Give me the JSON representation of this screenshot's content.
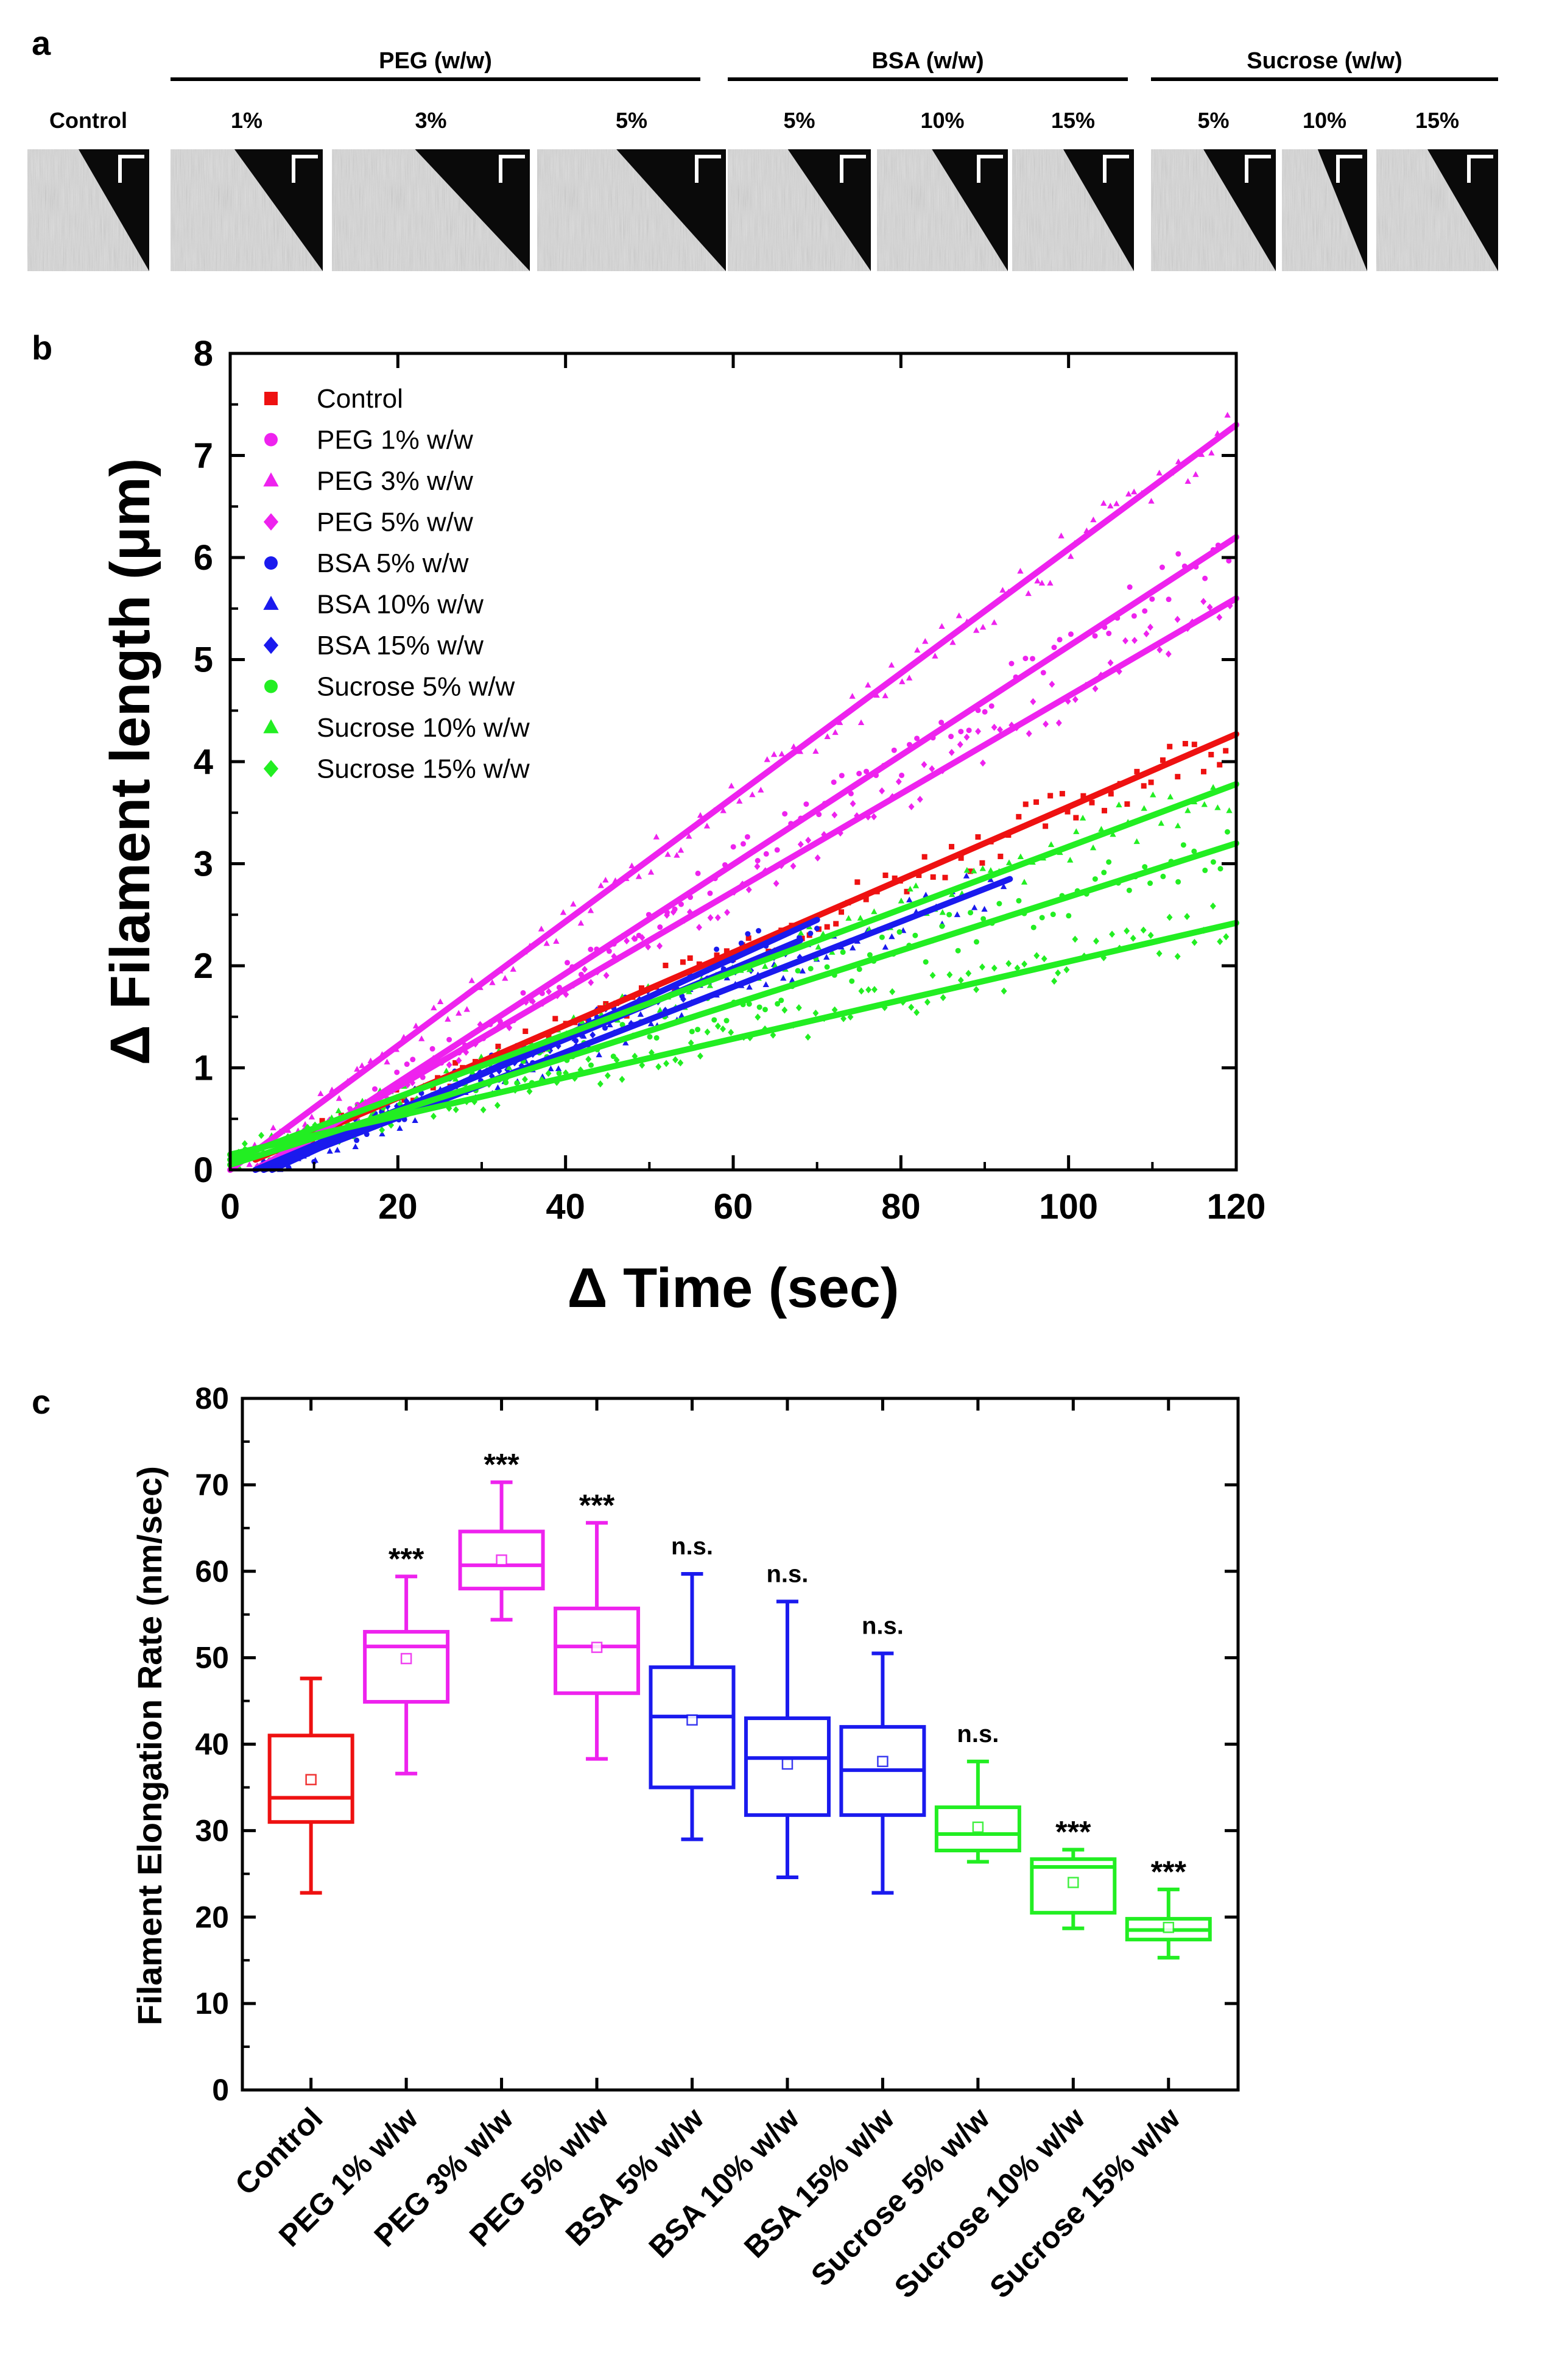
{
  "panel_labels": {
    "a": "a",
    "b": "b",
    "c": "c"
  },
  "colors": {
    "control": "#ee1111",
    "peg": "#ee22ee",
    "bsa": "#1a1aee",
    "sucrose": "#22ee22",
    "axis": "#000000"
  },
  "panel_a": {
    "groups": [
      {
        "title": "PEG (w/w)",
        "labels": [
          "1%",
          "3%",
          "5%"
        ]
      },
      {
        "title": "BSA (w/w)",
        "labels": [
          "5%",
          "10%",
          "15%"
        ]
      },
      {
        "title": "Sucrose (w/w)",
        "labels": [
          "5%",
          "10%",
          "15%"
        ]
      }
    ],
    "control_label": "Control"
  },
  "chart_data": [
    {
      "type": "scatter",
      "panel": "b",
      "xlabel": "Δ Time (sec)",
      "ylabel": "Δ Filament length (μm)",
      "xlim": [
        0,
        120
      ],
      "ylim": [
        0,
        8
      ],
      "xticks": [
        "0",
        "20",
        "40",
        "60",
        "80",
        "100",
        "120"
      ],
      "yticks": [
        "0",
        "1",
        "2",
        "3",
        "4",
        "5",
        "6",
        "7",
        "8"
      ],
      "legend_position": "top-left",
      "series": [
        {
          "name": "Control",
          "color": "#ee1111",
          "marker": "square",
          "fit": [
            [
              3,
              0.1
            ],
            [
              120,
              4.27
            ]
          ],
          "x_range": [
            10,
            119
          ]
        },
        {
          "name": "PEG 1% w/w",
          "color": "#ee22ee",
          "marker": "circle",
          "fit": [
            [
              4,
              0.0
            ],
            [
              120,
              6.2
            ]
          ],
          "x_range": [
            4,
            119
          ]
        },
        {
          "name": "PEG 3% w/w",
          "color": "#ee22ee",
          "marker": "triangle",
          "fit": [
            [
              0,
              0.0
            ],
            [
              120,
              7.3
            ]
          ],
          "x_range": [
            2,
            119
          ]
        },
        {
          "name": "PEG 5% w/w",
          "color": "#ee22ee",
          "marker": "diamond",
          "fit": [
            [
              3,
              0.0
            ],
            [
              120,
              5.6
            ]
          ],
          "x_range": [
            3,
            119
          ]
        },
        {
          "name": "BSA 5% w/w",
          "color": "#1a1aee",
          "marker": "circle",
          "fit": [
            [
              5,
              0.0
            ],
            [
              70,
              2.45
            ]
          ],
          "x_range": [
            5,
            70
          ]
        },
        {
          "name": "BSA 10% w/w",
          "color": "#1a1aee",
          "marker": "triangle",
          "fit": [
            [
              4,
              0.0
            ],
            [
              93,
              2.85
            ]
          ],
          "x_range": [
            4,
            92
          ]
        },
        {
          "name": "BSA 15% w/w",
          "color": "#1a1aee",
          "marker": "diamond",
          "fit": [
            [
              3,
              0.0
            ],
            [
              68,
              2.25
            ]
          ],
          "x_range": [
            3,
            68
          ]
        },
        {
          "name": "Sucrose 5% w/w",
          "color": "#22ee22",
          "marker": "circle",
          "fit": [
            [
              0,
              0.05
            ],
            [
              120,
              3.2
            ]
          ],
          "x_range": [
            1,
            119
          ]
        },
        {
          "name": "Sucrose 10% w/w",
          "color": "#22ee22",
          "marker": "triangle",
          "fit": [
            [
              0,
              0.1
            ],
            [
              120,
              3.78
            ]
          ],
          "x_range": [
            1,
            119
          ]
        },
        {
          "name": "Sucrose 15% w/w",
          "color": "#22ee22",
          "marker": "diamond",
          "fit": [
            [
              0,
              0.15
            ],
            [
              120,
              2.42
            ]
          ],
          "x_range": [
            1,
            119
          ]
        }
      ]
    },
    {
      "type": "box",
      "panel": "c",
      "ylabel": "Filament Elongation Rate (nm/sec)",
      "ylim": [
        0,
        80
      ],
      "yticks": [
        "0",
        "10",
        "20",
        "30",
        "40",
        "50",
        "60",
        "70",
        "80"
      ],
      "categories": [
        "Control",
        "PEG 1% w/w",
        "PEG 3% w/w",
        "PEG 5% w/w",
        "BSA 5% w/w",
        "BSA 10% w/w",
        "BSA 15% w/w",
        "Sucrose 5% w/w",
        "Sucrose 10% w/w",
        "Sucrose 15% w/w"
      ],
      "boxes": [
        {
          "name": "Control",
          "color": "#ee1111",
          "min": 22.8,
          "q1": 31.0,
          "median": 33.8,
          "q3": 41.0,
          "max": 47.6,
          "mean": 35.9,
          "significance": ""
        },
        {
          "name": "PEG 1% w/w",
          "color": "#ee22ee",
          "min": 36.6,
          "q1": 44.9,
          "median": 51.3,
          "q3": 53.0,
          "max": 59.4,
          "mean": 49.9,
          "significance": "***"
        },
        {
          "name": "PEG 3% w/w",
          "color": "#ee22ee",
          "min": 54.4,
          "q1": 58.0,
          "median": 60.7,
          "q3": 64.6,
          "max": 70.3,
          "mean": 61.3,
          "significance": "***"
        },
        {
          "name": "PEG 5% w/w",
          "color": "#ee22ee",
          "min": 38.3,
          "q1": 45.9,
          "median": 51.3,
          "q3": 55.7,
          "max": 65.6,
          "mean": 51.2,
          "significance": "***"
        },
        {
          "name": "BSA 5% w/w",
          "color": "#1a1aee",
          "min": 29.0,
          "q1": 35.0,
          "median": 43.2,
          "q3": 48.9,
          "max": 59.7,
          "mean": 42.8,
          "significance": "n.s."
        },
        {
          "name": "BSA 10% w/w",
          "color": "#1a1aee",
          "min": 24.6,
          "q1": 31.8,
          "median": 38.4,
          "q3": 43.0,
          "max": 56.5,
          "mean": 37.7,
          "significance": "n.s."
        },
        {
          "name": "BSA 15% w/w",
          "color": "#1a1aee",
          "min": 22.8,
          "q1": 31.8,
          "median": 37.0,
          "q3": 42.0,
          "max": 50.5,
          "mean": 38.0,
          "significance": "n.s."
        },
        {
          "name": "Sucrose 5% w/w",
          "color": "#22ee22",
          "min": 26.4,
          "q1": 27.7,
          "median": 29.6,
          "q3": 32.7,
          "max": 38.0,
          "mean": 30.4,
          "significance": "n.s."
        },
        {
          "name": "Sucrose 10% w/w",
          "color": "#22ee22",
          "min": 18.7,
          "q1": 20.5,
          "median": 25.8,
          "q3": 26.7,
          "max": 27.8,
          "mean": 24.0,
          "significance": "***"
        },
        {
          "name": "Sucrose 15% w/w",
          "color": "#22ee22",
          "min": 15.3,
          "q1": 17.4,
          "median": 18.5,
          "q3": 19.8,
          "max": 23.2,
          "mean": 18.8,
          "significance": "***"
        }
      ]
    }
  ]
}
